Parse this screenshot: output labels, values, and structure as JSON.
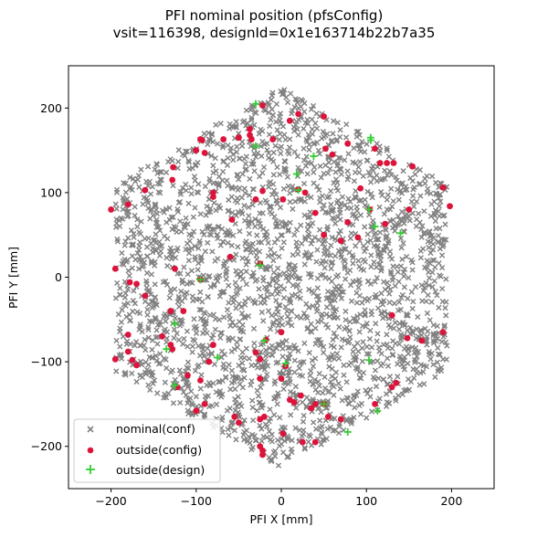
{
  "chart_data": {
    "type": "scatter",
    "title_line1": "PFI nominal position (pfsConfig)",
    "title_line2": "vsit=116398, designId=0x1e163714b22b7a35",
    "xlabel": "PFI X [mm]",
    "ylabel": "PFI Y [mm]",
    "xlim": [
      -250,
      250
    ],
    "ylim": [
      -250,
      250
    ],
    "xticks": [
      -200,
      -100,
      0,
      100,
      200
    ],
    "yticks": [
      -200,
      -100,
      0,
      100,
      200
    ],
    "legend_position": "lower-left",
    "grid": false,
    "series": [
      {
        "name": "nominal(conf)",
        "marker": "x",
        "color": "#808080",
        "fill_region": {
          "shape": "hexagon",
          "vertices": [
            [
              0,
              225
            ],
            [
              195,
              112
            ],
            [
              195,
              -112
            ],
            [
              0,
              -225
            ],
            [
              -195,
              -112
            ],
            [
              -195,
              112
            ]
          ],
          "point_count": 2394
        }
      },
      {
        "name": "outside(config)",
        "marker": "o",
        "color": "#dc143c",
        "points": [
          [
            -22,
            203
          ],
          [
            20,
            193
          ],
          [
            10,
            185
          ],
          [
            50,
            190
          ],
          [
            -37,
            175
          ],
          [
            -37,
            168
          ],
          [
            -35,
            163
          ],
          [
            -10,
            163
          ],
          [
            -50,
            165
          ],
          [
            -68,
            163
          ],
          [
            -95,
            163
          ],
          [
            -93,
            162
          ],
          [
            -100,
            150
          ],
          [
            -90,
            147
          ],
          [
            -127,
            130
          ],
          [
            -128,
            115
          ],
          [
            -160,
            103
          ],
          [
            -200,
            80
          ],
          [
            -180,
            86
          ],
          [
            -80,
            100
          ],
          [
            -80,
            95
          ],
          [
            -30,
            92
          ],
          [
            -22,
            102
          ],
          [
            20,
            104
          ],
          [
            28,
            100
          ],
          [
            2,
            92
          ],
          [
            52,
            152
          ],
          [
            60,
            145
          ],
          [
            78,
            158
          ],
          [
            110,
            152
          ],
          [
            116,
            135
          ],
          [
            124,
            135
          ],
          [
            132,
            135
          ],
          [
            154,
            131
          ],
          [
            93,
            105
          ],
          [
            78,
            65
          ],
          [
            90,
            47
          ],
          [
            70,
            43
          ],
          [
            40,
            76
          ],
          [
            50,
            50
          ],
          [
            104,
            80
          ],
          [
            122,
            63
          ],
          [
            150,
            80
          ],
          [
            198,
            84
          ],
          [
            190,
            106
          ],
          [
            -58,
            68
          ],
          [
            -60,
            24
          ],
          [
            -25,
            16
          ],
          [
            -125,
            10
          ],
          [
            -195,
            10
          ],
          [
            -170,
            -8
          ],
          [
            -178,
            -6
          ],
          [
            -160,
            -22
          ],
          [
            -95,
            -3
          ],
          [
            -115,
            -40
          ],
          [
            -130,
            -40
          ],
          [
            -180,
            -68
          ],
          [
            -180,
            -88
          ],
          [
            -195,
            -97
          ],
          [
            -175,
            -98
          ],
          [
            -170,
            -104
          ],
          [
            -140,
            -70
          ],
          [
            -130,
            -80
          ],
          [
            -128,
            -85
          ],
          [
            -122,
            -130
          ],
          [
            -110,
            -116
          ],
          [
            -95,
            -122
          ],
          [
            -85,
            -100
          ],
          [
            -80,
            -80
          ],
          [
            -90,
            -150
          ],
          [
            -100,
            -158
          ],
          [
            -55,
            -165
          ],
          [
            -50,
            -172
          ],
          [
            -25,
            -168
          ],
          [
            -25,
            -200
          ],
          [
            -22,
            -205
          ],
          [
            -22,
            -210
          ],
          [
            -20,
            -165
          ],
          [
            -25,
            -120
          ],
          [
            -25,
            -97
          ],
          [
            -30,
            -89
          ],
          [
            -18,
            -74
          ],
          [
            0,
            -65
          ],
          [
            5,
            -105
          ],
          [
            0,
            -120
          ],
          [
            10,
            -145
          ],
          [
            15,
            -148
          ],
          [
            23,
            -140
          ],
          [
            35,
            -155
          ],
          [
            40,
            -150
          ],
          [
            50,
            -150
          ],
          [
            55,
            -165
          ],
          [
            70,
            -168
          ],
          [
            25,
            -195
          ],
          [
            40,
            -195
          ],
          [
            110,
            -150
          ],
          [
            130,
            -130
          ],
          [
            135,
            -125
          ],
          [
            148,
            -72
          ],
          [
            165,
            -75
          ],
          [
            190,
            -65
          ],
          [
            130,
            -45
          ],
          [
            2,
            -185
          ]
        ]
      },
      {
        "name": "outside(design)",
        "marker": "+",
        "color": "#32cd32",
        "points": [
          [
            -30,
            205
          ],
          [
            105,
            165
          ],
          [
            105,
            162
          ],
          [
            -30,
            155
          ],
          [
            38,
            143
          ],
          [
            18,
            122
          ],
          [
            20,
            103
          ],
          [
            103,
            80
          ],
          [
            110,
            60
          ],
          [
            140,
            52
          ],
          [
            -25,
            14
          ],
          [
            -95,
            -3
          ],
          [
            -125,
            -55
          ],
          [
            -135,
            -85
          ],
          [
            -75,
            -95
          ],
          [
            -125,
            -128
          ],
          [
            5,
            -102
          ],
          [
            50,
            -150
          ],
          [
            103,
            -98
          ],
          [
            113,
            -158
          ],
          [
            78,
            -183
          ],
          [
            -20,
            -75
          ]
        ]
      }
    ]
  }
}
